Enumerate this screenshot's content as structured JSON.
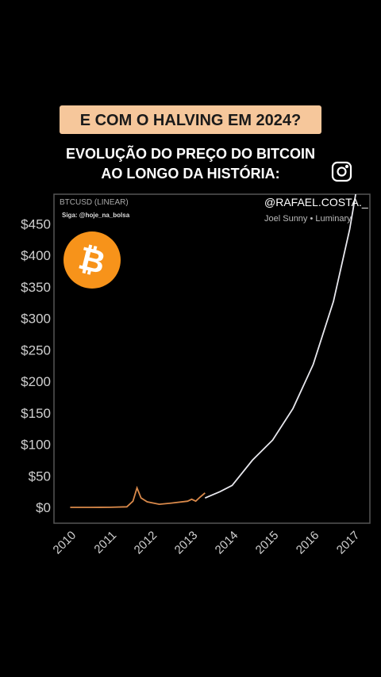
{
  "overlay": {
    "banner": "E COM O HALVING EM 2024?",
    "headline": [
      "EVOLUÇÃO DO PREÇO DO BITCOIN",
      "AO LONGO DA HISTÓRIA:"
    ],
    "handle": "@RAFAEL.COSTA._",
    "credit": "Joel Sunny • Luminary"
  },
  "chart_data": {
    "type": "line",
    "title": "BTCUSD (LINEAR)",
    "subtitle": "Siga: @hoje_na_bolsa",
    "series": [
      {
        "color": "#d9894a",
        "x": [
          2010.0,
          2010.5,
          2011.0,
          2011.4,
          2011.55,
          2011.65,
          2011.75,
          2011.9,
          2012.2,
          2012.5,
          2012.9,
          2013.0,
          2013.1,
          2013.2,
          2013.33
        ],
        "values": [
          0.1,
          0.1,
          0.3,
          1,
          10,
          31,
          15,
          9,
          5,
          7,
          10,
          13,
          10,
          16,
          23
        ]
      },
      {
        "color": "#e8e8ee",
        "x": [
          2013.33,
          2013.7,
          2014.0,
          2014.5,
          2015.0,
          2015.5,
          2016.0,
          2016.5,
          2016.9,
          2017.05
        ],
        "values": [
          15,
          25,
          35,
          75,
          107,
          157,
          227,
          327,
          441,
          497
        ]
      }
    ],
    "xlim": [
      2009.6,
      2017.4
    ],
    "xticks": [
      2010,
      2011,
      2012,
      2013,
      2014,
      2015,
      2016,
      2017
    ],
    "ylim": [
      -25,
      497
    ],
    "yticks": [
      {
        "value": 0,
        "label": "$0"
      },
      {
        "value": 50,
        "label": "$50"
      },
      {
        "value": 100,
        "label": "$100"
      },
      {
        "value": 150,
        "label": "$150"
      },
      {
        "value": 200,
        "label": "$200"
      },
      {
        "value": 250,
        "label": "$250"
      },
      {
        "value": 300,
        "label": "$300"
      },
      {
        "value": 350,
        "label": "$350"
      },
      {
        "value": 400,
        "label": "$400"
      },
      {
        "value": 450,
        "label": "$450"
      }
    ]
  }
}
